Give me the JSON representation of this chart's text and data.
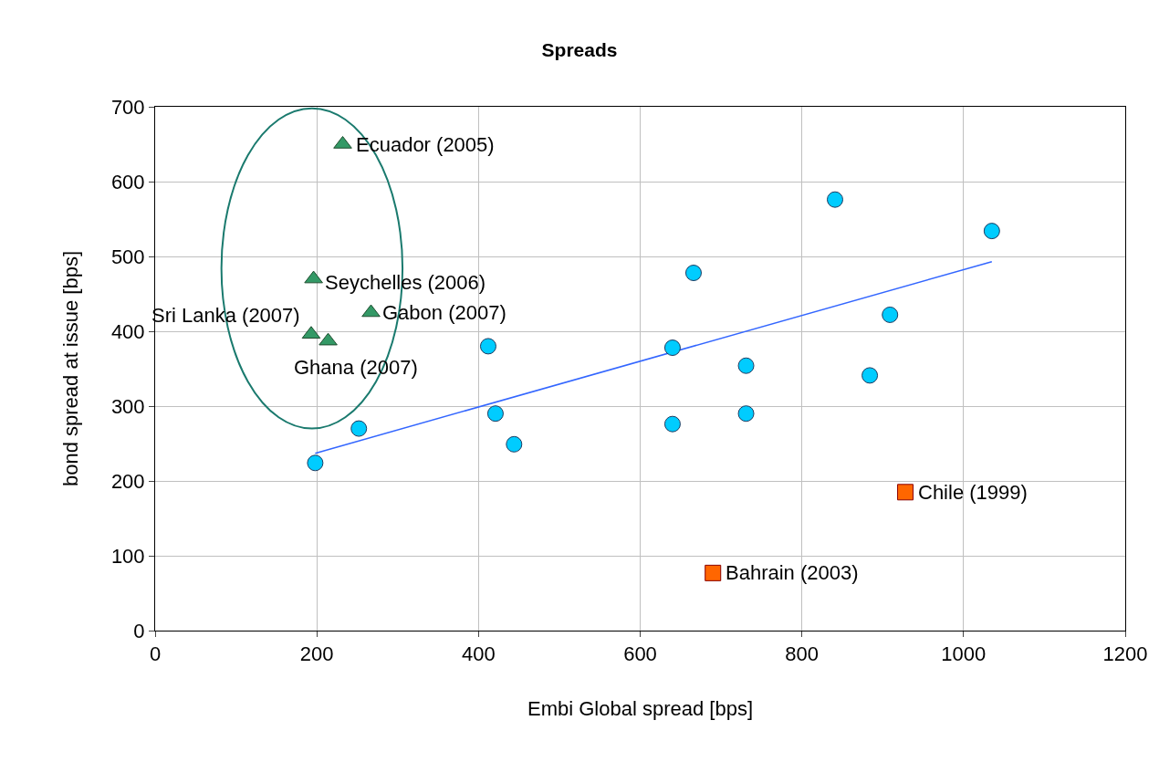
{
  "chart_data": {
    "type": "scatter",
    "title": "Spreads",
    "xlabel": "Embi Global spread [bps]",
    "ylabel": "bond spread at issue [bps]",
    "xlim": [
      0,
      1200
    ],
    "xticks": [
      0,
      200,
      400,
      600,
      800,
      1000,
      1200
    ],
    "ylim": [
      0,
      700
    ],
    "yticks": [
      0,
      100,
      200,
      300,
      400,
      500,
      600,
      700
    ],
    "grid": true,
    "series": [
      {
        "color": "#00ccff",
        "marker": "circle",
        "x": [
          198,
          252,
          412,
          421,
          444,
          640,
          640,
          666,
          731,
          731,
          841,
          884,
          909,
          1035
        ],
        "values": [
          224,
          270,
          380,
          290,
          249,
          378,
          276,
          478,
          354,
          290,
          576,
          341,
          422,
          534
        ]
      },
      {
        "color": "#339966",
        "marker": "triangle",
        "x": [
          232,
          196,
          267,
          193,
          214
        ],
        "values": [
          650,
          470,
          425,
          396,
          387
        ]
      },
      {
        "color": "#ff6600",
        "marker": "square",
        "x": [
          690,
          928
        ],
        "values": [
          77,
          185
        ]
      },
      {
        "type": "line",
        "color": "#3366ff",
        "marker": "none",
        "x": [
          198,
          1035
        ],
        "values": [
          237,
          493
        ]
      }
    ],
    "annotations": [
      {
        "text": "Ecuador (2005)",
        "x": 232,
        "y": 650
      },
      {
        "text": "Seychelles (2006)",
        "x": 196,
        "y": 470
      },
      {
        "text": "Gabon (2007)",
        "x": 267,
        "y": 425
      },
      {
        "text": "Sri Lanka (2007)",
        "x": 193,
        "y": 396
      },
      {
        "text": "Ghana (2007)",
        "x": 214,
        "y": 387
      },
      {
        "text": "Bahrain (2003)",
        "x": 690,
        "y": 77
      },
      {
        "text": "Chile (1999)",
        "x": 928,
        "y": 185
      }
    ]
  }
}
